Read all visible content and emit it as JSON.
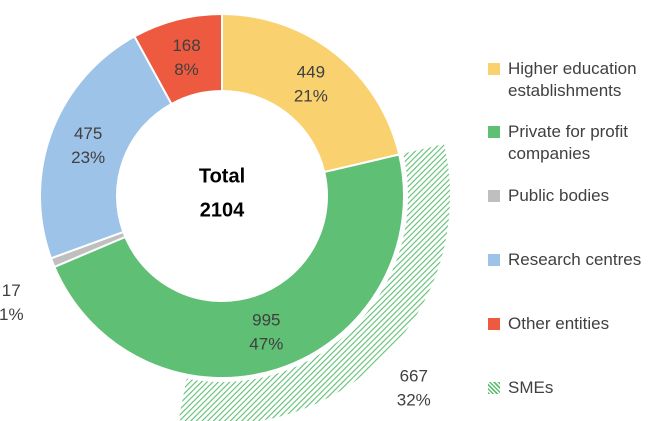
{
  "chart_data": {
    "type": "donut",
    "center_label": "Total",
    "total": 2104,
    "series": [
      {
        "name": "Higher education establishments",
        "color": "#f9d16f",
        "value": 449,
        "percent_label": "21%"
      },
      {
        "name": "Private for profit companies",
        "color": "#5fbf74",
        "value": 995,
        "percent_label": "47%"
      },
      {
        "name": "Public bodies",
        "color": "#bfbfbf",
        "value": 17,
        "percent_label": "1%"
      },
      {
        "name": "Research centres",
        "color": "#9ec3e8",
        "value": 475,
        "percent_label": "23%"
      },
      {
        "name": "Other entities",
        "color": "#ee5a3f",
        "value": 168,
        "percent_label": "8%"
      }
    ],
    "sub_series": {
      "name": "SMEs",
      "color": "#5fbf74",
      "pattern": "hatch",
      "parent": 1,
      "value": 667,
      "percent_label": "32%"
    },
    "legend": "right"
  }
}
